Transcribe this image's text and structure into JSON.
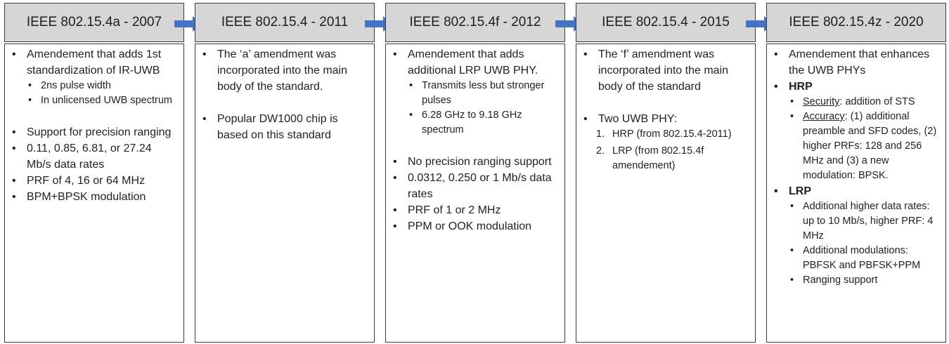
{
  "columns": [
    {
      "title": "IEEE 802.15.4a - 2007",
      "items": [
        "Amendement that adds 1st standardization of IR-UWB",
        "Support for precision ranging",
        "0.11, 0.85, 6.81, or 27.24 Mb/s data rates",
        "PRF of 4, 16 or 64 MHz",
        "BPM+BPSK modulation"
      ],
      "subitems": [
        "2ns pulse width",
        "In unlicensed UWB spectrum"
      ]
    },
    {
      "title": "IEEE 802.15.4 - 2011",
      "items": [
        "The ‘a’ amendment was incorporated into the main body of the standard.",
        "Popular DW1000 chip is based on this standard"
      ]
    },
    {
      "title": "IEEE 802.15.4f - 2012",
      "items": [
        "Amendement that adds additional LRP UWB PHY.",
        "No precision ranging support",
        "0.0312, 0.250 or 1 Mb/s data rates",
        "PRF of 1 or 2 MHz",
        "PPM or OOK modulation"
      ],
      "subitems": [
        "Transmits less but stronger pulses",
        "6.28 GHz to 9.18 GHz spectrum"
      ]
    },
    {
      "title": "IEEE 802.15.4 - 2015",
      "items": [
        "The ‘f’ amendment was incorporated into the main body of the standard",
        "Two UWB PHY:"
      ],
      "numbered": [
        {
          "num": "1.",
          "text": "HRP (from 802.15.4-2011)"
        },
        {
          "num": "2.",
          "text": "LRP (from 802.15.4f amendement)"
        }
      ]
    },
    {
      "title": "IEEE 802.15.4z - 2020",
      "items": [
        "Amendement that enhances the UWB PHYs",
        "HRP",
        "LRP"
      ],
      "hrp": [
        {
          "label": "Security",
          "text": ": addition of STS"
        },
        {
          "label": "Accuracy",
          "text": ": (1) additional preamble and SFD codes, (2) higher PRFs: 128 and 256 MHz and (3) a new modulation: BPSK."
        }
      ],
      "lrp": [
        "Additional higher data rates: up to 10 Mb/s, higher PRF: 4 MHz",
        "Additional modulations: PBFSK and PBFSK+PPM",
        "Ranging support"
      ]
    }
  ],
  "colors": {
    "header_fill": "#d6d6d6",
    "border": "#3a3a3a",
    "arrow": "#4472c4"
  }
}
